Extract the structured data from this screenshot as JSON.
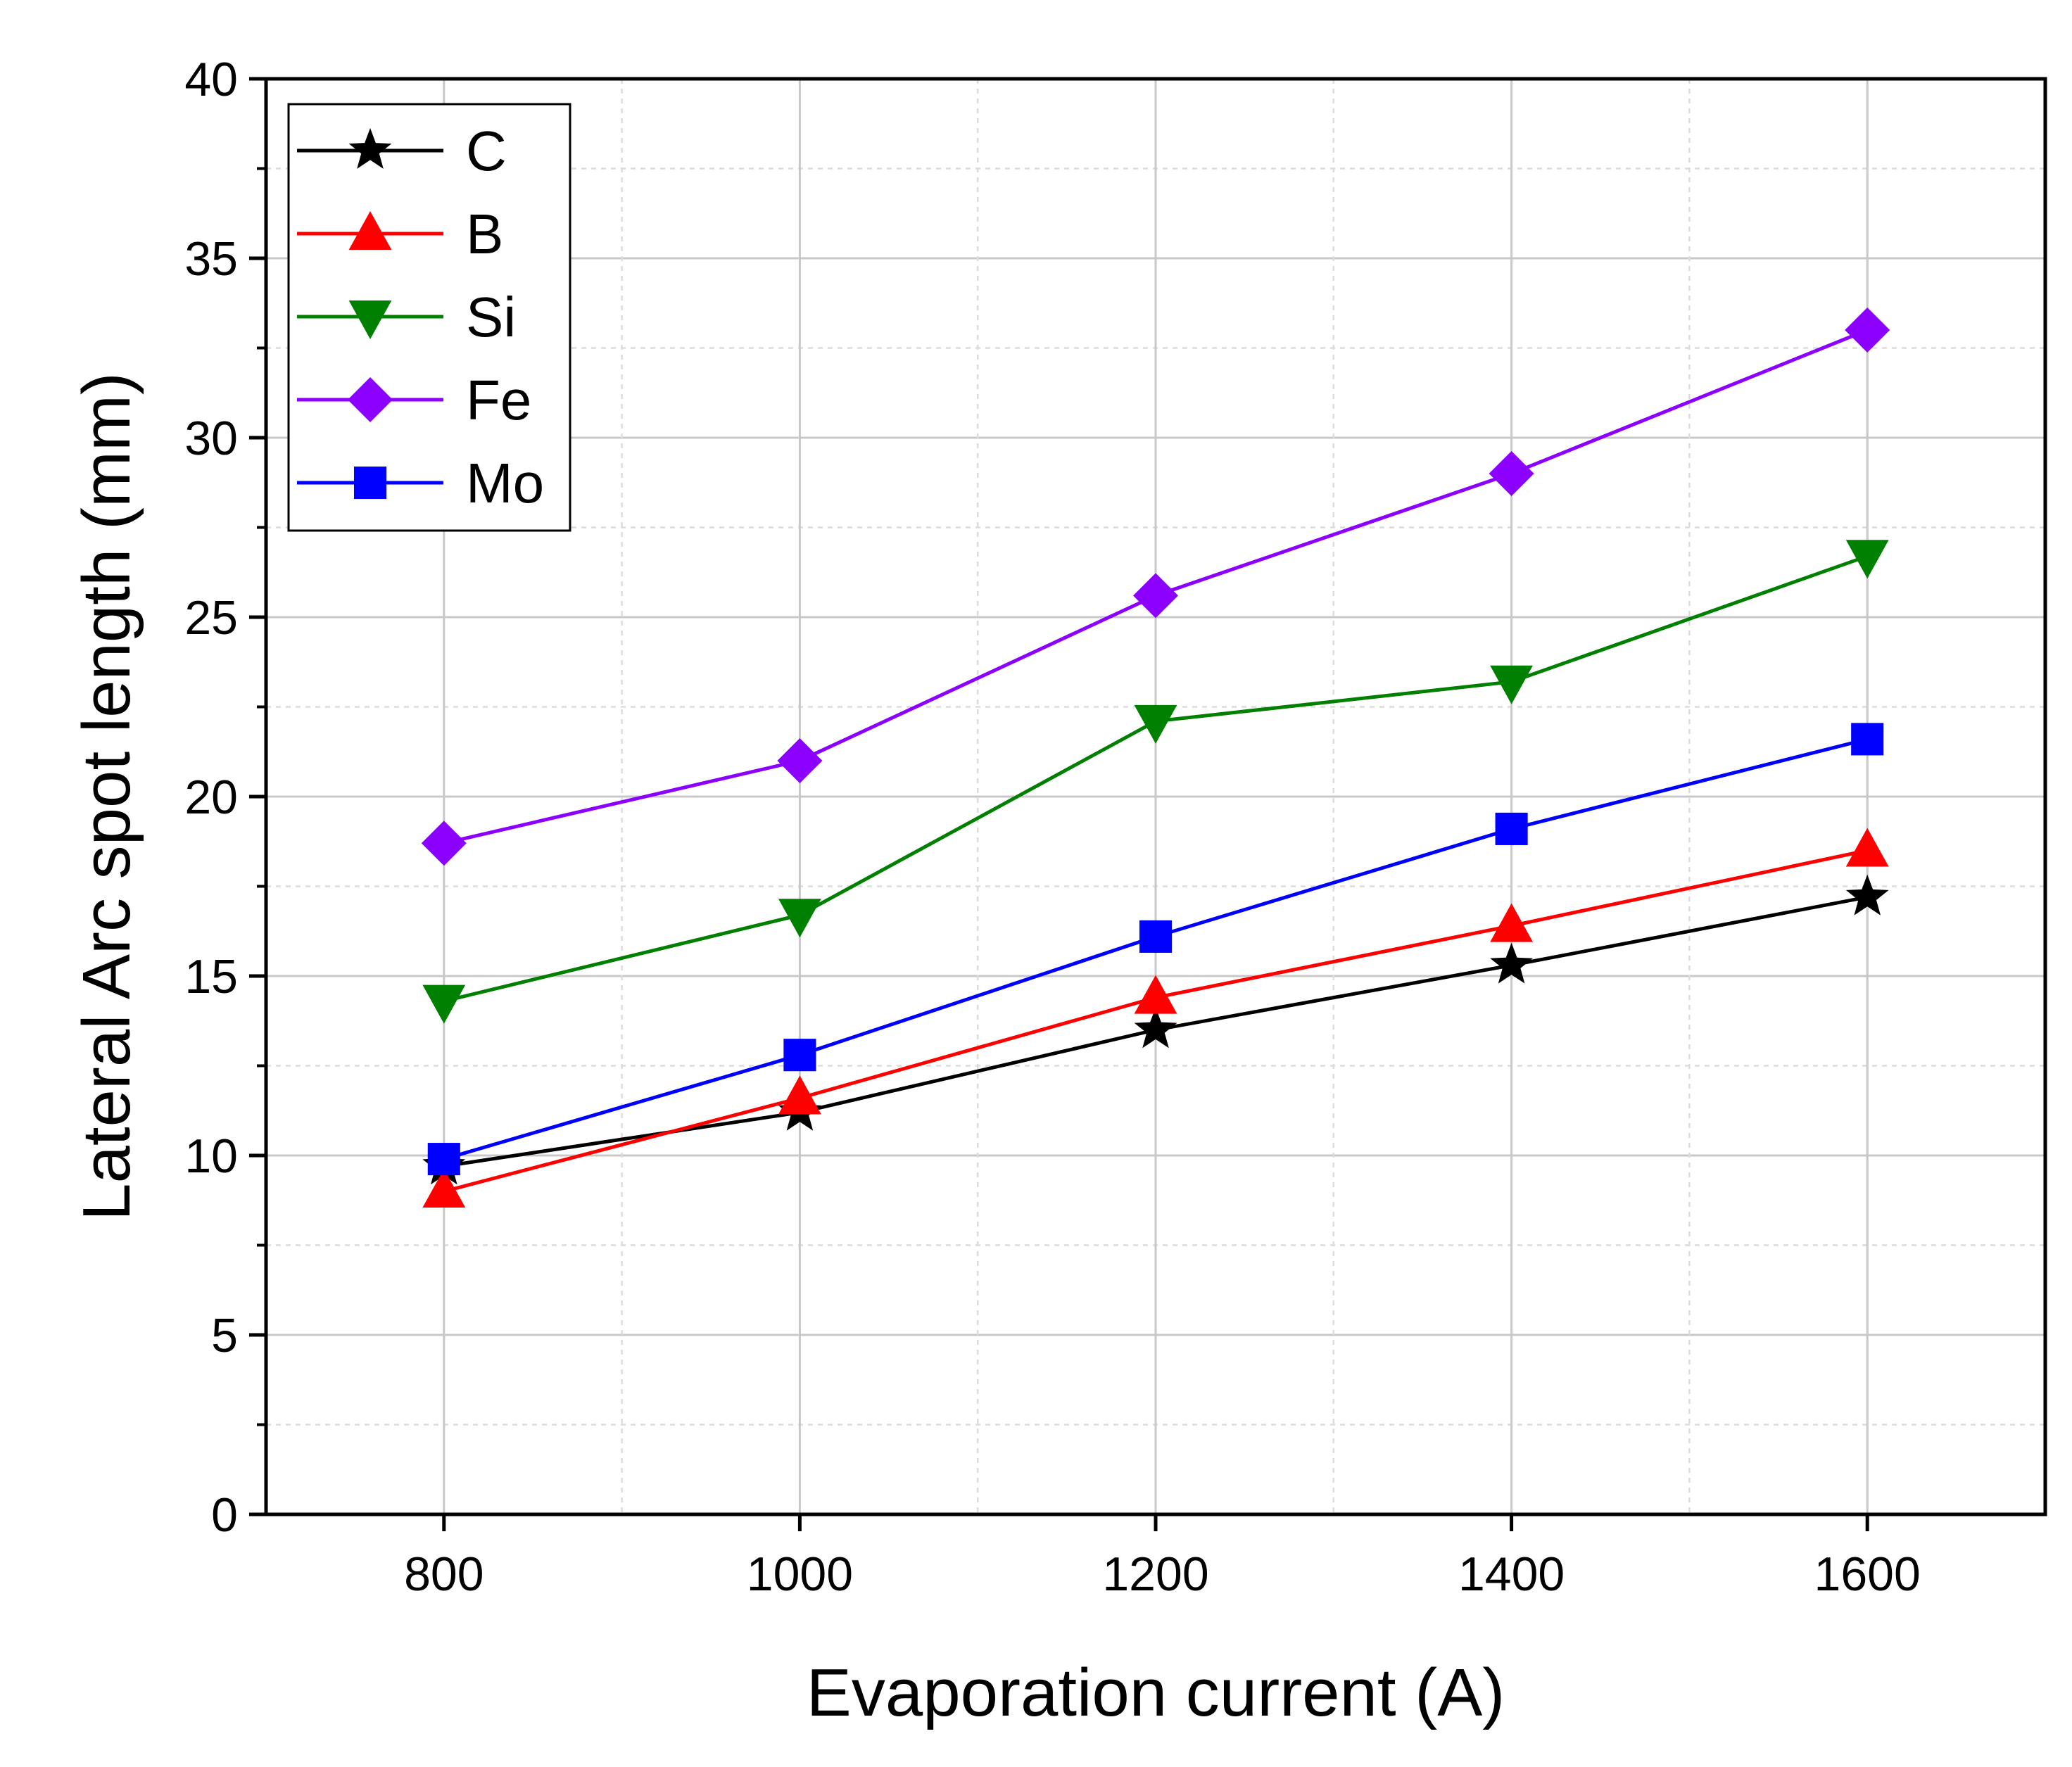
{
  "chart_data": {
    "type": "line",
    "title": "",
    "xlabel": "Evaporation current (A)",
    "ylabel": "Lateral Arc spot length (mm)",
    "xlim": [
      700,
      1700
    ],
    "ylim": [
      0,
      40
    ],
    "grid": true,
    "legend_position": "top-left",
    "x": [
      800,
      1000,
      1200,
      1400,
      1600
    ],
    "x_tick_labels": [
      "800",
      "1000",
      "1200",
      "1400",
      "1600"
    ],
    "y_ticks": [
      0,
      5,
      10,
      15,
      20,
      25,
      30,
      35,
      40
    ],
    "y_tick_labels": [
      "0",
      "5",
      "10",
      "15",
      "20",
      "25",
      "30",
      "35",
      "40"
    ],
    "series": [
      {
        "name": "C",
        "marker": "star",
        "color": "#000000",
        "values": [
          9.7,
          11.2,
          13.5,
          15.3,
          17.2
        ]
      },
      {
        "name": "B",
        "marker": "triangle-up",
        "color": "#ff0000",
        "values": [
          9.0,
          11.6,
          14.4,
          16.4,
          18.5
        ]
      },
      {
        "name": "Si",
        "marker": "triangle-down",
        "color": "#008000",
        "values": [
          14.3,
          16.7,
          22.1,
          23.2,
          26.7
        ]
      },
      {
        "name": "Fe",
        "marker": "diamond",
        "color": "#8b00ff",
        "values": [
          18.7,
          21.0,
          25.6,
          29.0,
          33.0
        ]
      },
      {
        "name": "Mo",
        "marker": "square",
        "color": "#0000ff",
        "values": [
          9.9,
          12.8,
          16.1,
          19.1,
          21.6
        ]
      }
    ]
  }
}
